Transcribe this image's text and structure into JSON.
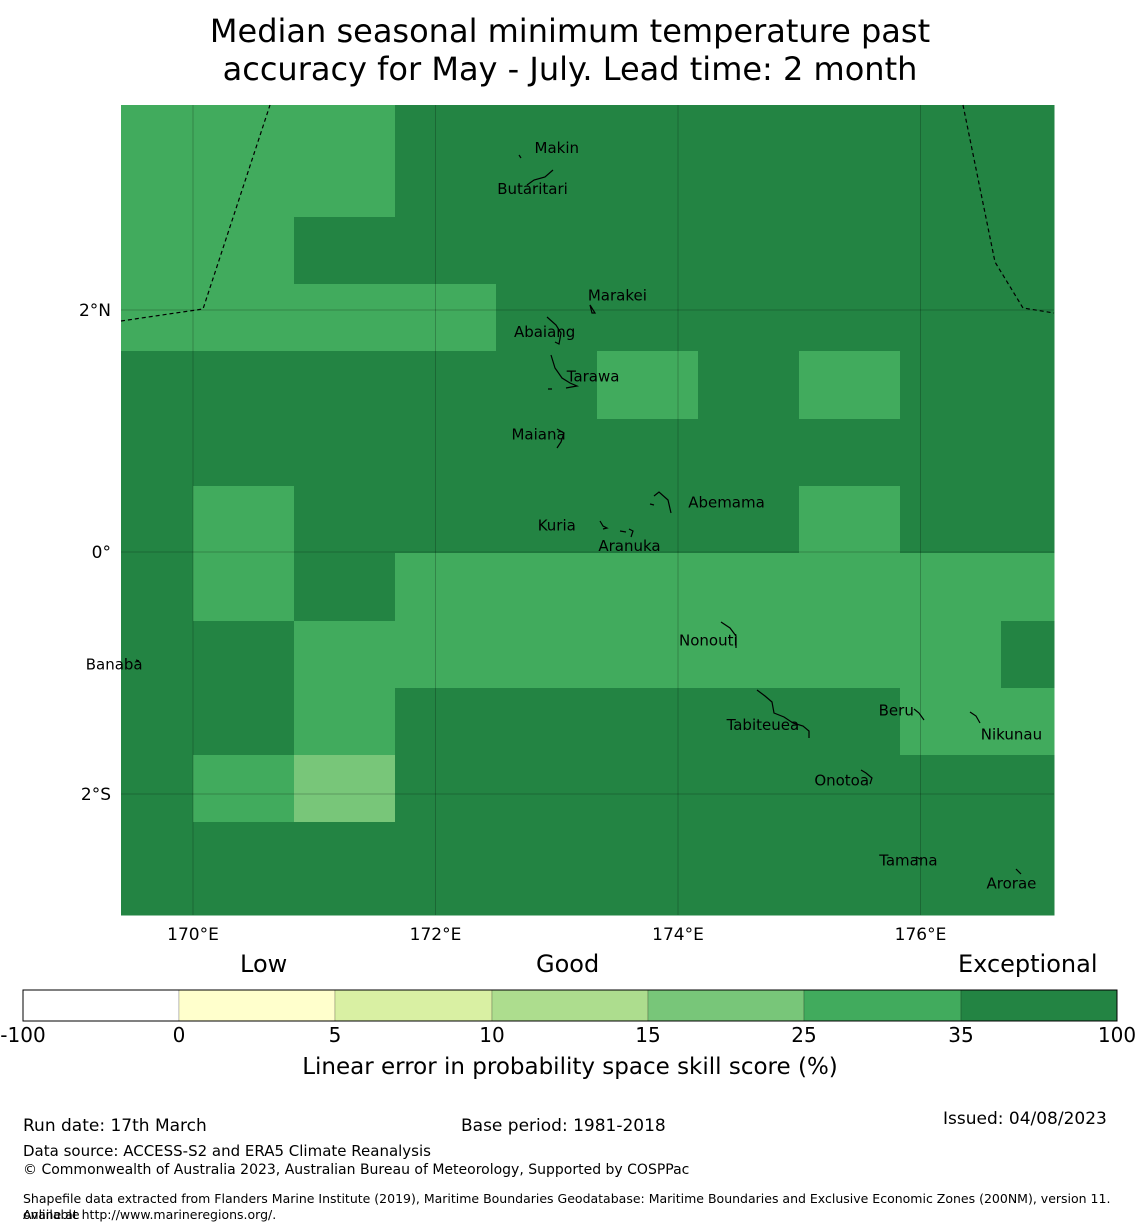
{
  "title": {
    "line1": "Median seasonal minimum temperature past",
    "line2": "accuracy for May - July. Lead time: 2 month"
  },
  "map": {
    "x_ticks": [
      "170°E",
      "172°E",
      "174°E",
      "176°E"
    ],
    "y_ticks": [
      "2°N",
      "0°",
      "2°S"
    ],
    "islands": [
      {
        "name": "Makin",
        "lon": 173.0,
        "lat": 3.34
      },
      {
        "name": "Butaritari",
        "lon": 172.8,
        "lat": 3.0
      },
      {
        "name": "Marakei",
        "lon": 173.5,
        "lat": 2.12
      },
      {
        "name": "Abaiang",
        "lon": 172.9,
        "lat": 1.82
      },
      {
        "name": "Tarawa",
        "lon": 173.3,
        "lat": 1.45
      },
      {
        "name": "Maiana",
        "lon": 172.85,
        "lat": 0.97
      },
      {
        "name": "Abemama",
        "lon": 174.4,
        "lat": 0.41
      },
      {
        "name": "Kuria",
        "lon": 173.0,
        "lat": 0.22
      },
      {
        "name": "Aranuka",
        "lon": 173.6,
        "lat": 0.05
      },
      {
        "name": "Nonouti",
        "lon": 174.25,
        "lat": -0.73
      },
      {
        "name": "Banaba",
        "lon": 169.35,
        "lat": -0.93
      },
      {
        "name": "Tabiteuea",
        "lon": 174.7,
        "lat": -1.43
      },
      {
        "name": "Beru",
        "lon": 175.8,
        "lat": -1.31
      },
      {
        "name": "Nikunau",
        "lon": 176.75,
        "lat": -1.51
      },
      {
        "name": "Onotoa",
        "lon": 175.35,
        "lat": -1.89
      },
      {
        "name": "Tamana",
        "lon": 175.9,
        "lat": -2.55
      },
      {
        "name": "Arorae",
        "lon": 176.75,
        "lat": -2.74
      }
    ]
  },
  "colorbar": {
    "category_labels": [
      "Low",
      "Good",
      "Exceptional"
    ],
    "ticks": [
      "-100",
      "0",
      "5",
      "10",
      "15",
      "25",
      "35",
      "100"
    ],
    "colors": [
      "#ffffff",
      "#ffffcc",
      "#d9f0a3",
      "#addd8e",
      "#78c679",
      "#41ab5d",
      "#238443"
    ],
    "title": "Linear error in probability space skill score (%)"
  },
  "footer": {
    "run_date": "Run date: 17th March",
    "base_period": "Base period: 1981-2018",
    "issued": "Issued: 04/08/2023",
    "data_source": "Data source: ACCESS-S2 and ERA5 Climate Reanalysis",
    "copyright": "© Commonwealth of Australia 2023, Australian Bureau of Meteorology, Supported by COSPPac",
    "shapefile_line1": "Shapefile data extracted from Flanders Marine Institute (2019), Maritime Boundaries Geodatabase: Maritime Boundaries and Exclusive Economic Zones (200NM), version 11. Available",
    "shapefile_line2": "online at http://www.marineregions.org/."
  }
}
